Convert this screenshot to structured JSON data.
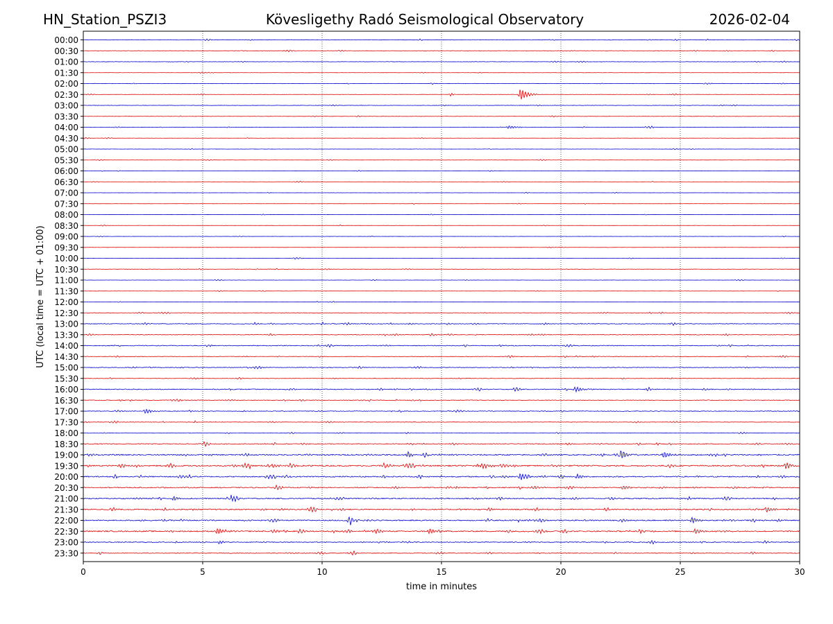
{
  "header": {
    "station": "HN_Station_PSZI3",
    "observatory": "Kövesligethy Radó Seismological Observatory",
    "date": "2026-02-04"
  },
  "chart_data": {
    "type": "line",
    "title": "Kövesligethy Radó Seismological Observatory",
    "xlabel": "time in minutes",
    "ylabel": "UTC (local time = UTC + 01:00)",
    "xlim": [
      0,
      30
    ],
    "x_ticks": [
      0,
      5,
      10,
      15,
      20,
      25,
      30
    ],
    "x_tick_labels": [
      "0",
      "5",
      "10",
      "15",
      "20",
      "25",
      "30"
    ],
    "vertical_gridlines_at": [
      5,
      10,
      15,
      20,
      25
    ],
    "rows": [
      "00:00",
      "00:30",
      "01:00",
      "01:30",
      "02:00",
      "02:30",
      "03:00",
      "03:30",
      "04:00",
      "04:30",
      "05:00",
      "05:30",
      "06:00",
      "06:30",
      "07:00",
      "07:30",
      "08:00",
      "08:30",
      "09:00",
      "09:30",
      "10:00",
      "10:30",
      "11:00",
      "11:30",
      "12:00",
      "12:30",
      "13:00",
      "13:30",
      "14:00",
      "14:30",
      "15:00",
      "15:30",
      "16:00",
      "16:30",
      "17:00",
      "17:30",
      "18:00",
      "18:30",
      "19:00",
      "19:30",
      "20:00",
      "20:30",
      "21:00",
      "21:30",
      "22:00",
      "22:30",
      "23:00",
      "23:30"
    ],
    "row_colors": [
      "#0000cc",
      "#dd0000"
    ],
    "row_noise_levels": [
      0.6,
      0.55,
      0.5,
      0.3,
      0.45,
      0.3,
      0.45,
      0.35,
      0.5,
      0.3,
      0.3,
      0.25,
      0.3,
      0.25,
      0.2,
      0.2,
      0.2,
      0.2,
      0.25,
      0.2,
      0.3,
      0.45,
      0.3,
      0.25,
      0.25,
      0.6,
      0.9,
      0.8,
      1.0,
      0.7,
      0.9,
      0.6,
      1.1,
      0.9,
      0.9,
      0.7,
      0.6,
      1.0,
      1.6,
      1.7,
      1.5,
      1.3,
      1.4,
      1.5,
      1.5,
      1.6,
      1.1,
      0.9
    ],
    "events": [
      {
        "row": "02:30",
        "minute": 18.3,
        "amplitude": 9,
        "duration_min": 0.7
      },
      {
        "row": "02:30",
        "minute": 15.4,
        "amplitude": 3,
        "duration_min": 0.2
      },
      {
        "row": "04:00",
        "minute": 17.8,
        "amplitude": 2.5,
        "duration_min": 0.8
      },
      {
        "row": "16:00",
        "minute": 20.6,
        "amplitude": 4,
        "duration_min": 0.8
      },
      {
        "row": "17:00",
        "minute": 2.6,
        "amplitude": 4,
        "duration_min": 0.6
      },
      {
        "row": "19:00",
        "minute": 22.5,
        "amplitude": 7,
        "duration_min": 0.5
      },
      {
        "row": "19:00",
        "minute": 24.3,
        "amplitude": 5,
        "duration_min": 0.6
      },
      {
        "row": "19:00",
        "minute": 13.6,
        "amplitude": 5,
        "duration_min": 0.4
      },
      {
        "row": "19:30",
        "minute": 16.6,
        "amplitude": 5,
        "duration_min": 0.8
      },
      {
        "row": "19:30",
        "minute": 29.4,
        "amplitude": 5,
        "duration_min": 0.6
      },
      {
        "row": "19:30",
        "minute": 7.9,
        "amplitude": 4,
        "duration_min": 0.5
      },
      {
        "row": "20:00",
        "minute": 18.3,
        "amplitude": 6,
        "duration_min": 0.5
      },
      {
        "row": "20:00",
        "minute": 20.7,
        "amplitude": 4,
        "duration_min": 0.4
      },
      {
        "row": "20:30",
        "minute": 22.6,
        "amplitude": 4,
        "duration_min": 0.5
      },
      {
        "row": "21:00",
        "minute": 3.8,
        "amplitude": 4,
        "duration_min": 0.5
      },
      {
        "row": "21:00",
        "minute": 6.2,
        "amplitude": 5,
        "duration_min": 0.4
      },
      {
        "row": "21:30",
        "minute": 28.6,
        "amplitude": 4,
        "duration_min": 0.6
      },
      {
        "row": "22:00",
        "minute": 25.5,
        "amplitude": 5,
        "duration_min": 0.6
      },
      {
        "row": "22:30",
        "minute": 5.6,
        "amplitude": 5,
        "duration_min": 0.8
      },
      {
        "row": "22:30",
        "minute": 14.5,
        "amplitude": 5,
        "duration_min": 0.5
      },
      {
        "row": "22:30",
        "minute": 25.6,
        "amplitude": 4,
        "duration_min": 0.6
      },
      {
        "row": "23:00",
        "minute": 5.7,
        "amplitude": 3,
        "duration_min": 0.4
      }
    ]
  }
}
